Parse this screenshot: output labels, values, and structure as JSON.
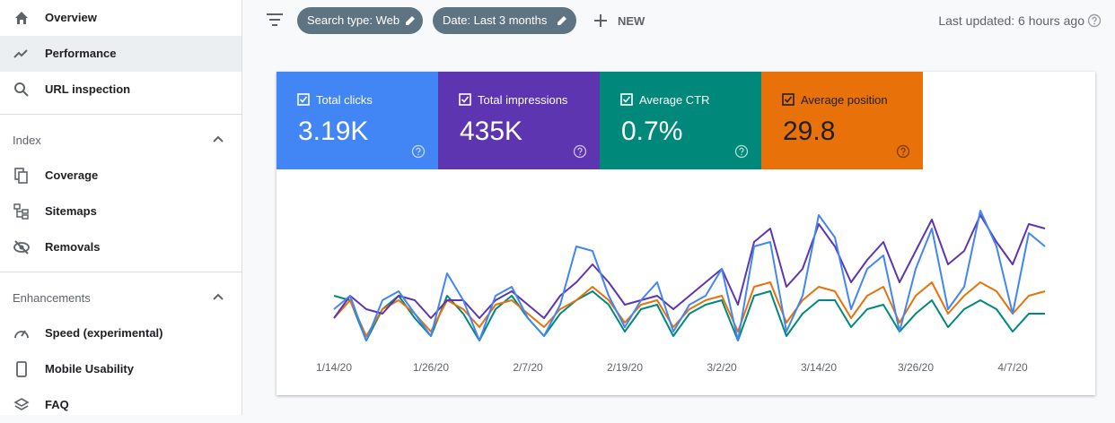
{
  "sidebar": {
    "items": [
      "Overview",
      "Performance",
      "URL inspection"
    ],
    "sections": [
      {
        "title": "Index",
        "items": [
          "Coverage",
          "Sitemaps",
          "Removals"
        ]
      },
      {
        "title": "Enhancements",
        "items": [
          "Speed (experimental)",
          "Mobile Usability",
          "FAQ"
        ]
      }
    ]
  },
  "toolbar": {
    "filters": [
      "Search type: Web",
      "Date: Last 3 months"
    ],
    "new_button": "NEW",
    "last_updated": "Last updated: 6 hours ago"
  },
  "metrics": [
    {
      "label": "Total clicks",
      "value": "3.19K"
    },
    {
      "label": "Total impressions",
      "value": "435K"
    },
    {
      "label": "Average CTR",
      "value": "0.7%"
    },
    {
      "label": "Average position",
      "value": "29.8"
    }
  ],
  "chart_data": {
    "type": "line",
    "categories": [
      "1/14/20",
      null,
      null,
      null,
      null,
      null,
      "1/26/20",
      null,
      null,
      null,
      null,
      null,
      "2/7/20",
      null,
      null,
      null,
      null,
      null,
      "2/19/20",
      null,
      null,
      null,
      null,
      null,
      "3/2/20",
      null,
      null,
      null,
      null,
      null,
      "3/14/20",
      null,
      null,
      null,
      null,
      null,
      "3/26/20",
      null,
      null,
      null,
      null,
      null,
      "4/7/20",
      null,
      null
    ],
    "ylim": [
      0,
      160
    ],
    "series": [
      {
        "color": "#00897b",
        "values": [
          60,
          55,
          10,
          45,
          60,
          35,
          15,
          60,
          40,
          10,
          45,
          60,
          35,
          15,
          40,
          55,
          65,
          50,
          20,
          45,
          50,
          15,
          40,
          50,
          55,
          10,
          60,
          65,
          15,
          40,
          55,
          55,
          25,
          45,
          50,
          20,
          40,
          55,
          25,
          45,
          55,
          45,
          20,
          40,
          40
        ]
      },
      {
        "color": "#e8710a",
        "values": [
          35,
          55,
          15,
          45,
          55,
          40,
          20,
          55,
          45,
          25,
          50,
          55,
          40,
          25,
          45,
          55,
          70,
          55,
          30,
          50,
          55,
          25,
          45,
          55,
          60,
          20,
          70,
          75,
          30,
          55,
          70,
          65,
          35,
          60,
          70,
          30,
          60,
          75,
          40,
          60,
          75,
          65,
          40,
          60,
          65
        ]
      },
      {
        "color": "#5e35b1",
        "values": [
          35,
          60,
          45,
          40,
          60,
          55,
          35,
          55,
          55,
          35,
          55,
          65,
          50,
          35,
          60,
          75,
          95,
          75,
          50,
          55,
          60,
          45,
          60,
          75,
          90,
          50,
          120,
          135,
          70,
          90,
          140,
          115,
          75,
          100,
          120,
          75,
          110,
          145,
          95,
          110,
          150,
          120,
          95,
          140,
          135
        ]
      },
      {
        "color": "#4285f4",
        "values": [
          45,
          60,
          10,
          55,
          65,
          40,
          15,
          85,
          55,
          10,
          60,
          70,
          35,
          15,
          50,
          115,
          110,
          60,
          25,
          55,
          75,
          20,
          50,
          60,
          90,
          10,
          115,
          120,
          20,
          60,
          150,
          125,
          45,
          90,
          105,
          20,
          90,
          135,
          45,
          70,
          155,
          115,
          40,
          130,
          115
        ]
      }
    ]
  }
}
